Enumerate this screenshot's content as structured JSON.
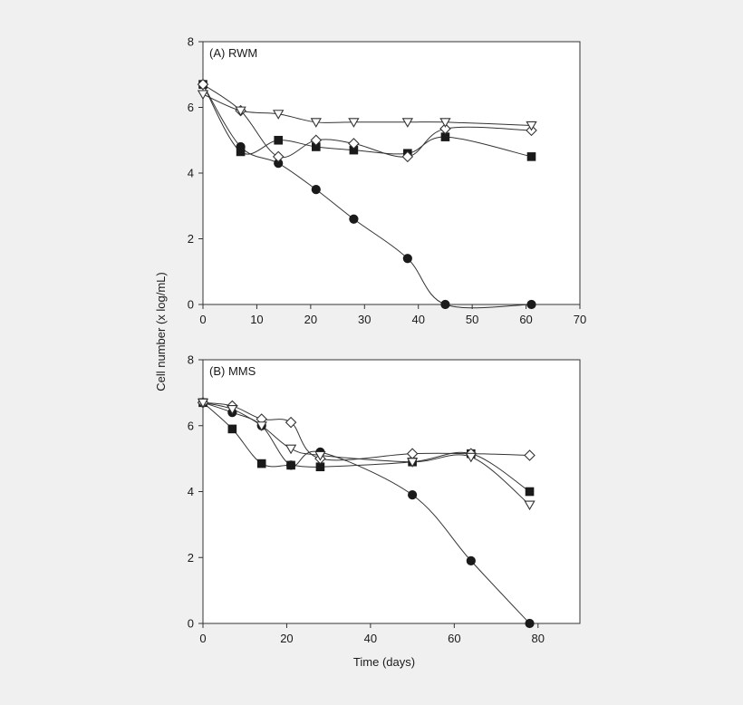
{
  "figure": {
    "ylabel": "Cell number (x log/mL)",
    "xlabel": "Time (days)"
  },
  "chart_data": [
    {
      "type": "line",
      "panel_label": "(A) RWM",
      "xlim": [
        0,
        70
      ],
      "ylim": [
        0,
        8
      ],
      "xticks": [
        0,
        10,
        20,
        30,
        40,
        50,
        60,
        70
      ],
      "yticks": [
        0,
        2,
        4,
        6,
        8
      ],
      "grid": false,
      "series": [
        {
          "marker": "filled-circle",
          "x": [
            0,
            7,
            14,
            21,
            28,
            38,
            45,
            61
          ],
          "y": [
            6.7,
            4.8,
            4.3,
            3.5,
            2.6,
            1.4,
            0.0,
            0.0
          ]
        },
        {
          "marker": "filled-square",
          "x": [
            0,
            7,
            14,
            21,
            28,
            38,
            45,
            61
          ],
          "y": [
            6.7,
            4.65,
            5.0,
            4.8,
            4.7,
            4.6,
            5.1,
            4.5
          ]
        },
        {
          "marker": "open-diamond",
          "x": [
            0,
            7,
            14,
            21,
            28,
            38,
            45,
            61
          ],
          "y": [
            6.7,
            5.9,
            4.5,
            5.0,
            4.9,
            4.5,
            5.35,
            5.3
          ]
        },
        {
          "marker": "open-triangle-down",
          "x": [
            0,
            7,
            14,
            21,
            28,
            38,
            45,
            61
          ],
          "y": [
            6.4,
            5.9,
            5.8,
            5.55,
            5.55,
            5.55,
            5.55,
            5.45
          ]
        }
      ]
    },
    {
      "type": "line",
      "panel_label": "(B) MMS",
      "xlim": [
        0,
        90
      ],
      "ylim": [
        0,
        8
      ],
      "xticks": [
        0,
        20,
        40,
        60,
        80
      ],
      "yticks": [
        0,
        2,
        4,
        6,
        8
      ],
      "grid": false,
      "series": [
        {
          "marker": "filled-circle",
          "x": [
            0,
            7,
            14,
            21,
            28,
            50,
            64,
            78
          ],
          "y": [
            6.7,
            6.4,
            6.0,
            4.8,
            5.2,
            3.9,
            1.9,
            0.0
          ]
        },
        {
          "marker": "filled-square",
          "x": [
            0,
            7,
            14,
            21,
            28,
            50,
            64,
            78
          ],
          "y": [
            6.7,
            5.9,
            4.85,
            4.8,
            4.75,
            4.9,
            5.15,
            4.0
          ]
        },
        {
          "marker": "open-diamond",
          "x": [
            0,
            7,
            14,
            21,
            28,
            50,
            64,
            78
          ],
          "y": [
            6.7,
            6.6,
            6.2,
            6.1,
            5.0,
            5.15,
            5.15,
            5.1
          ]
        },
        {
          "marker": "open-triangle-down",
          "x": [
            0,
            7,
            14,
            21,
            28,
            50,
            64,
            78
          ],
          "y": [
            6.7,
            6.5,
            6.0,
            5.3,
            5.1,
            4.9,
            5.05,
            3.6
          ]
        }
      ]
    }
  ]
}
